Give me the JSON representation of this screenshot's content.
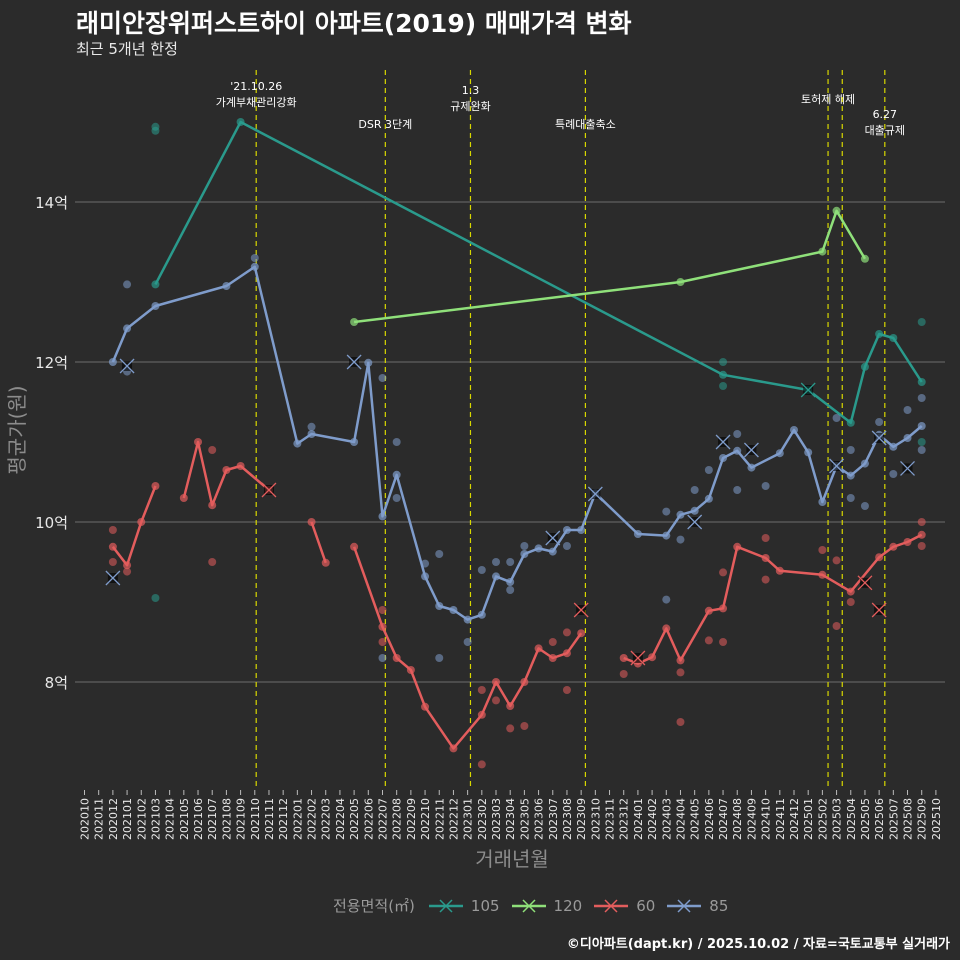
{
  "header": {
    "title": "래미안장위퍼스트하이 아파트(2019) 매매가격 변화",
    "subtitle": "최근 5개년 한정"
  },
  "footer": "©디아파트(dapt.kr) / 2025.10.02 / 자료=국토교통부 실거래가",
  "chart_data": {
    "type": "line",
    "title": "래미안장위퍼스트하이 아파트(2019) 매매가격 변화",
    "xlabel": "거래년월",
    "ylabel": "평균가(원)",
    "ylim": [
      6.65,
      15.65
    ],
    "yticks": [
      {
        "v": 8,
        "label": "8억"
      },
      {
        "v": 10,
        "label": "10억"
      },
      {
        "v": 12,
        "label": "12억"
      },
      {
        "v": 14,
        "label": "14억"
      }
    ],
    "xticks": [
      "202010",
      "202011",
      "202012",
      "202101",
      "202102",
      "202103",
      "202104",
      "202105",
      "202106",
      "202107",
      "202108",
      "202109",
      "202110",
      "202111",
      "202112",
      "202201",
      "202202",
      "202203",
      "202204",
      "202205",
      "202206",
      "202207",
      "202208",
      "202209",
      "202210",
      "202211",
      "202212",
      "202301",
      "202302",
      "202303",
      "202304",
      "202305",
      "202306",
      "202307",
      "202308",
      "202309",
      "202310",
      "202311",
      "202312",
      "202401",
      "202402",
      "202403",
      "202404",
      "202405",
      "202406",
      "202407",
      "202408",
      "202409",
      "202410",
      "202411",
      "202412",
      "202501",
      "202502",
      "202503",
      "202504",
      "202505",
      "202506",
      "202507",
      "202508",
      "202509",
      "202510"
    ],
    "grid": true,
    "legend": {
      "title": "전용면적(㎡)",
      "placement": "bottom"
    },
    "events": [
      {
        "month_index": 12.1,
        "lines": [
          "'21.10.26",
          "가계부채관리강화"
        ]
      },
      {
        "month_index": 21.2,
        "lines": [
          "DSR 3단계"
        ]
      },
      {
        "month_index": 27.2,
        "lines": [
          "1.3",
          "규제완화"
        ]
      },
      {
        "month_index": 35.3,
        "lines": [
          "특례대출축소"
        ]
      },
      {
        "month_index": 52.4,
        "lines": [
          "토허제 해제"
        ]
      },
      {
        "month_index": 53.4,
        "lines": []
      },
      {
        "month_index": 56.4,
        "lines": [
          "6.27",
          "대출규제"
        ]
      }
    ],
    "series": [
      {
        "name": "105",
        "color": "#2a9a8c",
        "segments": [
          [
            [
              "202103",
              12.97
            ],
            [
              "202109",
              15.0
            ],
            [
              "202407",
              11.84
            ],
            [
              "202501",
              11.65
            ],
            [
              "202504",
              11.24
            ],
            [
              "202505",
              11.94
            ],
            [
              "202506",
              12.35
            ],
            [
              "202507",
              12.3
            ],
            [
              "202509",
              11.75
            ]
          ]
        ],
        "points": [
          [
            "202103",
            14.94
          ],
          [
            "202103",
            14.89
          ],
          [
            "202103",
            9.05
          ],
          [
            "202407",
            12.0
          ],
          [
            "202407",
            11.7
          ],
          [
            "202509",
            12.5
          ],
          [
            "202509",
            11.0
          ]
        ],
        "highlights": [
          [
            "202501",
            11.65
          ]
        ]
      },
      {
        "name": "120",
        "color": "#8fe07a",
        "segments": [
          [
            [
              "202205",
              12.5
            ],
            [
              "202404",
              13.0
            ],
            [
              "202502",
              13.38
            ],
            [
              "202503",
              13.89
            ],
            [
              "202505",
              13.29
            ]
          ]
        ],
        "points": [],
        "highlights": []
      },
      {
        "name": "60",
        "color": "#e35d5d",
        "segments": [
          [
            [
              "202012",
              9.69
            ],
            [
              "202101",
              9.46
            ],
            [
              "202102",
              10.0
            ],
            [
              "202103",
              10.45
            ]
          ],
          [
            [
              "202105",
              10.3
            ],
            [
              "202106",
              11.0
            ],
            [
              "202107",
              10.21
            ],
            [
              "202108",
              10.65
            ],
            [
              "202109",
              10.7
            ],
            [
              "202111",
              10.4
            ]
          ],
          [
            [
              "202202",
              10.0
            ],
            [
              "202203",
              9.49
            ]
          ],
          [
            [
              "202205",
              9.69
            ],
            [
              "202207",
              8.69
            ],
            [
              "202208",
              8.3
            ],
            [
              "202209",
              8.15
            ],
            [
              "202210",
              7.69
            ],
            [
              "202212",
              7.17
            ],
            [
              "202302",
              7.59
            ],
            [
              "202303",
              8.0
            ],
            [
              "202304",
              7.7
            ],
            [
              "202305",
              8.0
            ],
            [
              "202306",
              8.42
            ],
            [
              "202307",
              8.3
            ],
            [
              "202308",
              8.36
            ],
            [
              "202309",
              8.61
            ]
          ],
          [
            [
              "202312",
              8.3
            ],
            [
              "202401",
              8.23
            ],
            [
              "202402",
              8.31
            ],
            [
              "202403",
              8.67
            ],
            [
              "202404",
              8.27
            ],
            [
              "202406",
              8.89
            ],
            [
              "202407",
              8.92
            ],
            [
              "202408",
              9.69
            ],
            [
              "202410",
              9.55
            ],
            [
              "202411",
              9.39
            ],
            [
              "202502",
              9.34
            ],
            [
              "202504",
              9.13
            ],
            [
              "202506",
              9.56
            ],
            [
              "202507",
              9.69
            ],
            [
              "202508",
              9.75
            ],
            [
              "202509",
              9.84
            ]
          ]
        ],
        "points": [
          [
            "202012",
            9.9
          ],
          [
            "202012",
            9.5
          ],
          [
            "202101",
            9.38
          ],
          [
            "202107",
            9.5
          ],
          [
            "202107",
            10.9
          ],
          [
            "202207",
            8.9
          ],
          [
            "202207",
            8.5
          ],
          [
            "202302",
            6.97
          ],
          [
            "202302",
            7.9
          ],
          [
            "202303",
            7.77
          ],
          [
            "202304",
            7.42
          ],
          [
            "202305",
            7.45
          ],
          [
            "202308",
            7.9
          ],
          [
            "202308",
            8.62
          ],
          [
            "202307",
            8.5
          ],
          [
            "202312",
            8.1
          ],
          [
            "202404",
            7.5
          ],
          [
            "202404",
            8.12
          ],
          [
            "202406",
            8.52
          ],
          [
            "202407",
            8.5
          ],
          [
            "202407",
            9.37
          ],
          [
            "202410",
            9.8
          ],
          [
            "202410",
            9.28
          ],
          [
            "202502",
            9.65
          ],
          [
            "202503",
            8.7
          ],
          [
            "202503",
            9.52
          ],
          [
            "202504",
            9.0
          ],
          [
            "202509",
            10.0
          ],
          [
            "202509",
            9.7
          ]
        ],
        "highlights": [
          [
            "202111",
            10.4
          ],
          [
            "202309",
            8.9
          ],
          [
            "202401",
            8.3
          ],
          [
            "202505",
            9.24
          ],
          [
            "202506",
            8.9
          ]
        ]
      },
      {
        "name": "85",
        "color": "#7f9ccb",
        "segments": [
          [
            [
              "202012",
              12.0
            ],
            [
              "202101",
              12.42
            ],
            [
              "202103",
              12.7
            ],
            [
              "202108",
              12.95
            ],
            [
              "202110",
              13.19
            ],
            [
              "202201",
              10.98
            ],
            [
              "202202",
              11.1
            ],
            [
              "202205",
              11.0
            ],
            [
              "202206",
              11.99
            ],
            [
              "202207",
              10.07
            ],
            [
              "202208",
              10.59
            ],
            [
              "202210",
              9.32
            ],
            [
              "202211",
              8.95
            ],
            [
              "202212",
              8.9
            ],
            [
              "202301",
              8.78
            ],
            [
              "202302",
              8.84
            ],
            [
              "202303",
              9.32
            ],
            [
              "202304",
              9.25
            ],
            [
              "202305",
              9.6
            ],
            [
              "202306",
              9.67
            ],
            [
              "202307",
              9.63
            ],
            [
              "202308",
              9.9
            ],
            [
              "202309",
              9.9
            ],
            [
              "202310",
              10.36
            ],
            [
              "202401",
              9.85
            ],
            [
              "202403",
              9.83
            ],
            [
              "202404",
              10.09
            ],
            [
              "202405",
              10.14
            ],
            [
              "202406",
              10.29
            ],
            [
              "202407",
              10.8
            ],
            [
              "202408",
              10.89
            ],
            [
              "202409",
              10.68
            ],
            [
              "202411",
              10.86
            ],
            [
              "202412",
              11.15
            ],
            [
              "202501",
              10.87
            ],
            [
              "202502",
              10.25
            ],
            [
              "202503",
              10.7
            ],
            [
              "202504",
              10.58
            ],
            [
              "202505",
              10.73
            ],
            [
              "202506",
              11.09
            ],
            [
              "202507",
              10.94
            ],
            [
              "202508",
              11.05
            ],
            [
              "202509",
              11.2
            ]
          ]
        ],
        "points": [
          [
            "202101",
            12.97
          ],
          [
            "202101",
            11.88
          ],
          [
            "202110",
            13.3
          ],
          [
            "202202",
            11.19
          ],
          [
            "202207",
            11.8
          ],
          [
            "202208",
            11.0
          ],
          [
            "202208",
            10.3
          ],
          [
            "202207",
            8.3
          ],
          [
            "202210",
            9.48
          ],
          [
            "202211",
            9.6
          ],
          [
            "202211",
            8.3
          ],
          [
            "202301",
            8.5
          ],
          [
            "202302",
            9.4
          ],
          [
            "202303",
            9.5
          ],
          [
            "202304",
            9.5
          ],
          [
            "202304",
            9.15
          ],
          [
            "202305",
            9.7
          ],
          [
            "202308",
            9.7
          ],
          [
            "202403",
            9.03
          ],
          [
            "202403",
            10.13
          ],
          [
            "202404",
            9.78
          ],
          [
            "202405",
            10.4
          ],
          [
            "202406",
            10.65
          ],
          [
            "202408",
            11.1
          ],
          [
            "202408",
            10.4
          ],
          [
            "202410",
            10.45
          ],
          [
            "202503",
            11.3
          ],
          [
            "202504",
            10.9
          ],
          [
            "202504",
            10.3
          ],
          [
            "202505",
            10.2
          ],
          [
            "202506",
            11.25
          ],
          [
            "202507",
            10.6
          ],
          [
            "202508",
            11.4
          ],
          [
            "202509",
            11.55
          ],
          [
            "202509",
            10.9
          ]
        ],
        "highlights": [
          [
            "202012",
            9.3
          ],
          [
            "202101",
            11.95
          ],
          [
            "202205",
            12.0
          ],
          [
            "202307",
            9.8
          ],
          [
            "202310",
            10.35
          ],
          [
            "202405",
            10.0
          ],
          [
            "202407",
            11.0
          ],
          [
            "202409",
            10.9
          ],
          [
            "202503",
            10.7
          ],
          [
            "202506",
            11.05
          ],
          [
            "202508",
            10.67
          ]
        ]
      }
    ]
  }
}
